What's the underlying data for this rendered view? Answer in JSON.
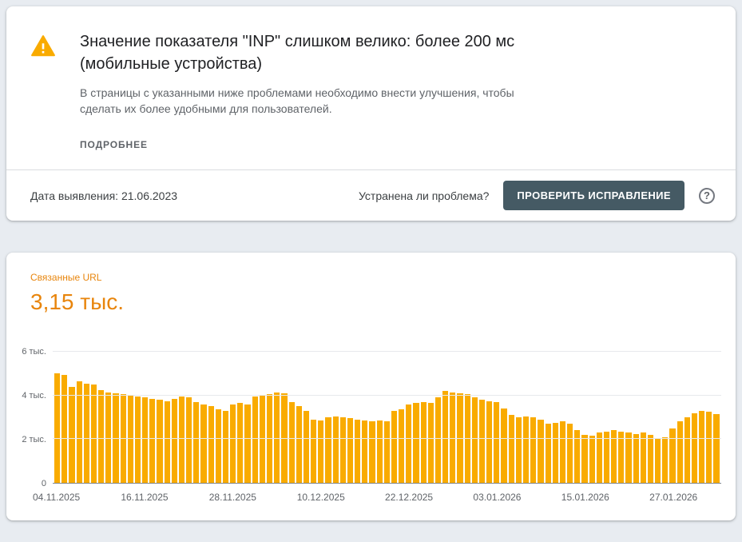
{
  "issue_card": {
    "title": "Значение показателя \"INP\" слишком велико: более 200 мс (мобильные устройства)",
    "description": "В страницы с указанными ниже проблемами необходимо внести улучшения, чтобы сделать их более удобными для пользователей.",
    "learn_more_label": "ПОДРОБНЕЕ",
    "detected_date": "Дата выявления: 21.06.2023",
    "fixed_question": "Устранена ли проблема?",
    "validate_button_label": "ПРОВЕРИТЬ ИСПРАВЛЕНИЕ",
    "help_icon_glyph": "?"
  },
  "related_urls_card": {
    "label": "Связанные URL",
    "count": "3,15 тыс."
  },
  "colors": {
    "bar": "#F9AB00",
    "metric_text": "#E8850C",
    "warning_icon": "#F9AB00",
    "button_bg": "#455A64",
    "page_background": "#E8ECF1"
  },
  "chart_data": {
    "type": "bar",
    "series_name": "Связанные URL",
    "unit": "тыс.",
    "ylim": [
      0,
      6
    ],
    "y_tick_labels": [
      "0",
      "2 тыс.",
      "4 тыс.",
      "6 тыс."
    ],
    "x_tick_labels": [
      "04.11.2025",
      "16.11.2025",
      "28.11.2025",
      "10.12.2025",
      "22.12.2025",
      "03.01.2026",
      "15.01.2026",
      "27.01.2026"
    ],
    "x_tick_indices": [
      0,
      12,
      24,
      36,
      48,
      60,
      72,
      84
    ],
    "values_thousands": [
      5.0,
      4.95,
      4.4,
      4.65,
      4.55,
      4.5,
      4.25,
      4.15,
      4.1,
      4.05,
      4.0,
      3.95,
      3.9,
      3.85,
      3.8,
      3.75,
      3.85,
      3.95,
      3.9,
      3.7,
      3.6,
      3.5,
      3.35,
      3.3,
      3.6,
      3.65,
      3.6,
      3.95,
      4.0,
      4.05,
      4.15,
      4.1,
      3.7,
      3.5,
      3.3,
      2.9,
      2.85,
      3.0,
      3.05,
      3.0,
      2.95,
      2.9,
      2.85,
      2.8,
      2.85,
      2.8,
      3.3,
      3.35,
      3.6,
      3.65,
      3.7,
      3.65,
      3.9,
      4.2,
      4.15,
      4.1,
      4.05,
      3.9,
      3.8,
      3.75,
      3.7,
      3.4,
      3.1,
      3.0,
      3.05,
      3.0,
      2.9,
      2.7,
      2.75,
      2.8,
      2.7,
      2.4,
      2.2,
      2.15,
      2.3,
      2.35,
      2.4,
      2.35,
      2.3,
      2.25,
      2.3,
      2.2,
      2.05,
      2.1,
      2.5,
      2.8,
      3.0,
      3.2,
      3.3,
      3.25,
      3.15
    ]
  }
}
